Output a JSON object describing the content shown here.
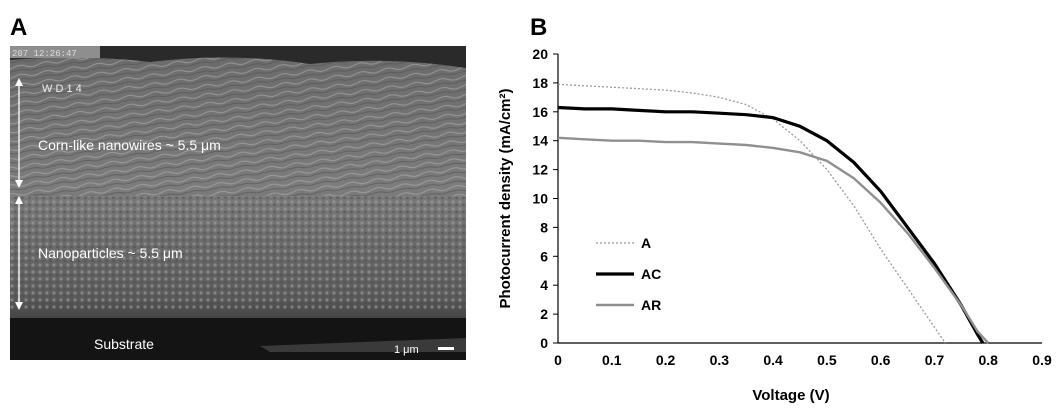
{
  "panels": {
    "a": {
      "letter": "A",
      "timestamp": "207 12:26:47",
      "wd_label": "W D 1 4",
      "layer_top_label": "Corn-like nanowires ~ 5.5 μm",
      "layer_bottom_label": "Nanoparticles ~ 5.5 μm",
      "substrate_label": "Substrate",
      "scale_bar_label": "1 μm"
    },
    "b": {
      "letter": "B"
    }
  },
  "chart_data": {
    "type": "line",
    "title": "",
    "xlabel": "Voltage (V)",
    "ylabel": "Photocurrent density  (mA/cm²)",
    "xlim": [
      0,
      0.9
    ],
    "ylim": [
      0,
      20
    ],
    "xticks": [
      "0",
      "0.1",
      "0.2",
      "0.3",
      "0.4",
      "0.5",
      "0.6",
      "0.7",
      "0.8",
      "0.9"
    ],
    "yticks": [
      "0",
      "2",
      "4",
      "6",
      "8",
      "10",
      "12",
      "14",
      "16",
      "18",
      "20"
    ],
    "grid": false,
    "legend_position": "bottom-left",
    "series": [
      {
        "name": "A",
        "color": "#9a9a9a",
        "style": "dotted",
        "x": [
          0,
          0.05,
          0.1,
          0.15,
          0.2,
          0.25,
          0.3,
          0.35,
          0.4,
          0.45,
          0.5,
          0.55,
          0.6,
          0.65,
          0.7,
          0.72
        ],
        "y": [
          17.9,
          17.8,
          17.7,
          17.6,
          17.5,
          17.3,
          17.0,
          16.5,
          15.5,
          14.0,
          12.0,
          9.5,
          6.5,
          3.8,
          1.1,
          0
        ]
      },
      {
        "name": "AC",
        "color": "#000000",
        "style": "solid-thick",
        "x": [
          0,
          0.05,
          0.1,
          0.15,
          0.2,
          0.25,
          0.3,
          0.35,
          0.4,
          0.45,
          0.5,
          0.55,
          0.6,
          0.65,
          0.7,
          0.75,
          0.78,
          0.79
        ],
        "y": [
          16.3,
          16.2,
          16.2,
          16.1,
          16.0,
          16.0,
          15.9,
          15.8,
          15.6,
          15.0,
          14.0,
          12.5,
          10.5,
          8.0,
          5.5,
          2.6,
          0.6,
          0
        ]
      },
      {
        "name": "AR",
        "color": "#8f8f8f",
        "style": "solid",
        "x": [
          0,
          0.05,
          0.1,
          0.15,
          0.2,
          0.25,
          0.3,
          0.35,
          0.4,
          0.45,
          0.5,
          0.55,
          0.6,
          0.65,
          0.7,
          0.75,
          0.78,
          0.8
        ],
        "y": [
          14.2,
          14.1,
          14.0,
          14.0,
          13.9,
          13.9,
          13.8,
          13.7,
          13.5,
          13.2,
          12.6,
          11.4,
          9.7,
          7.6,
          5.2,
          2.6,
          0.8,
          0
        ]
      }
    ]
  }
}
